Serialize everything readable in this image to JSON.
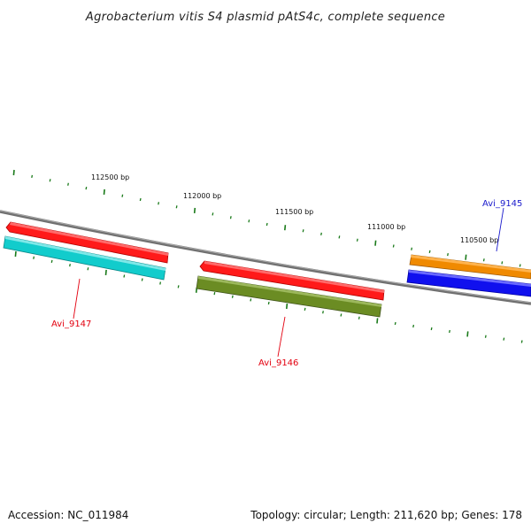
{
  "title": "Agrobacterium vitis S4 plasmid pAtS4c, complete sequence",
  "footer": {
    "accession": "Accession: NC_011984",
    "summary": "Topology: circular; Length: 211,620 bp; Genes: 178"
  },
  "scale_labels": [
    "112500 bp",
    "112000 bp",
    "111500 bp",
    "111000 bp",
    "110500 bp"
  ],
  "genes": [
    {
      "name": "Avi_9147",
      "color": "#e3000f"
    },
    {
      "name": "Avi_9146",
      "color": "#e3000f"
    },
    {
      "name": "Avi_9145",
      "color": "#1a1acc"
    }
  ],
  "colors": {
    "backbone": "#808080",
    "tick": "#1a7a1a",
    "red_feature": "#ff1010",
    "cyan_feature": "#10c8c8",
    "olive_feature": "#6b8c23",
    "orange_feature": "#f08a00",
    "blue_feature": "#1010ee"
  }
}
